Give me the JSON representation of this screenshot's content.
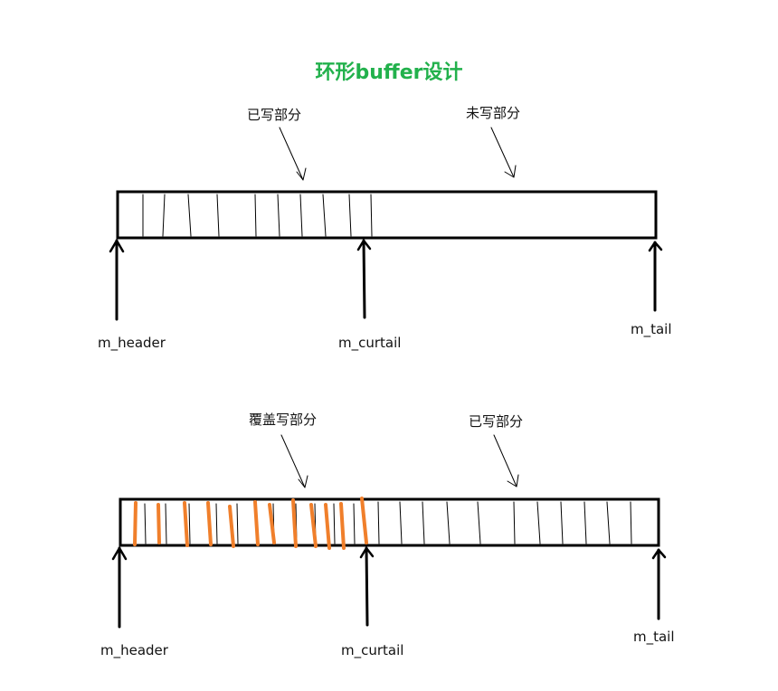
{
  "title": "环形buffer设计",
  "colors": {
    "title": "#22b14c",
    "stroke": "#000000",
    "overwrite": "#f07f2b"
  },
  "diagram1": {
    "written_label": "已写部分",
    "unwritten_label": "未写部分",
    "pointers": {
      "header": "m_header",
      "curtail": "m_curtail",
      "tail": "m_tail"
    }
  },
  "diagram2": {
    "overwrite_label": "覆盖写部分",
    "written_label": "已写部分",
    "pointers": {
      "header": "m_header",
      "curtail": "m_curtail",
      "tail": "m_tail"
    }
  }
}
